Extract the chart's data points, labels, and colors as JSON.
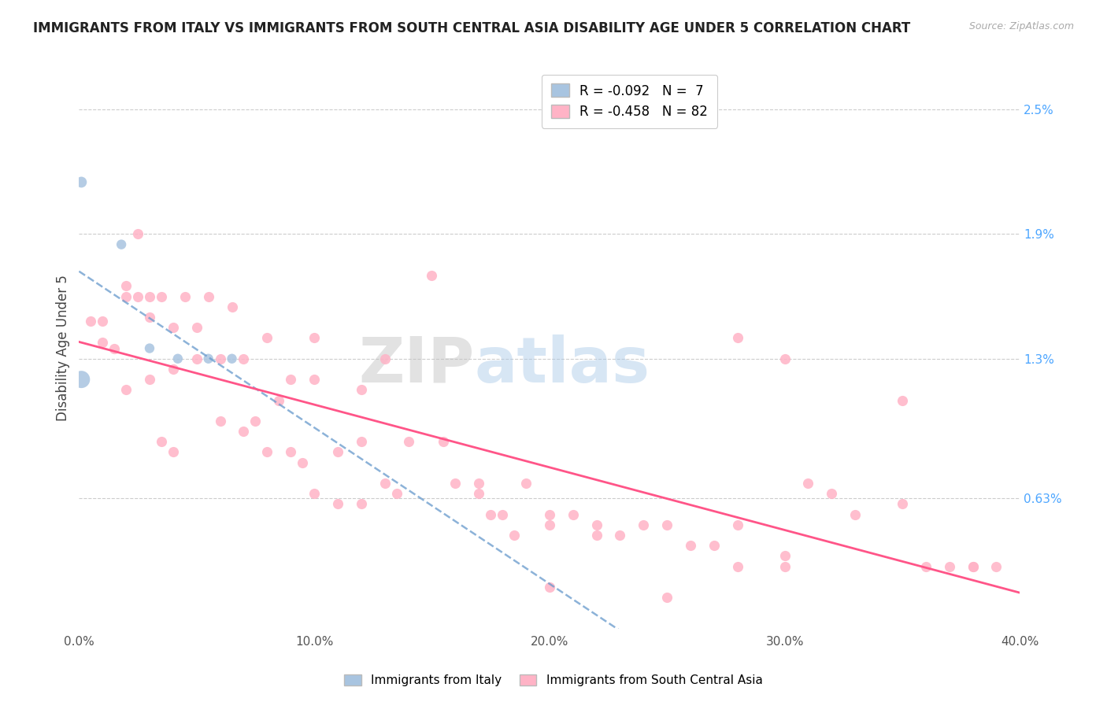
{
  "title": "IMMIGRANTS FROM ITALY VS IMMIGRANTS FROM SOUTH CENTRAL ASIA DISABILITY AGE UNDER 5 CORRELATION CHART",
  "source": "Source: ZipAtlas.com",
  "ylabel": "Disability Age Under 5",
  "ytick_labels": [
    "0.63%",
    "1.3%",
    "1.9%",
    "2.5%"
  ],
  "ytick_values": [
    0.0063,
    0.013,
    0.019,
    0.025
  ],
  "xlim": [
    0.0,
    0.4
  ],
  "ylim": [
    0.0,
    0.027
  ],
  "legend_italy_R": "-0.092",
  "legend_italy_N": "7",
  "legend_asia_R": "-0.458",
  "legend_asia_N": "82",
  "color_italy": "#a8c4e0",
  "color_italy_line": "#6699cc",
  "color_asia": "#ffb3c6",
  "color_asia_line": "#ff5588",
  "watermark_zip": "ZIP",
  "watermark_atlas": "atlas",
  "italy_x": [
    0.001,
    0.018,
    0.03,
    0.042,
    0.055,
    0.001,
    0.065
  ],
  "italy_y": [
    0.0215,
    0.0185,
    0.0135,
    0.013,
    0.013,
    0.012,
    0.013
  ],
  "asia_scatter_x": [
    0.005,
    0.01,
    0.01,
    0.015,
    0.02,
    0.02,
    0.02,
    0.025,
    0.025,
    0.03,
    0.03,
    0.03,
    0.035,
    0.035,
    0.04,
    0.04,
    0.04,
    0.045,
    0.05,
    0.05,
    0.055,
    0.06,
    0.06,
    0.065,
    0.07,
    0.07,
    0.075,
    0.08,
    0.08,
    0.085,
    0.09,
    0.09,
    0.095,
    0.1,
    0.1,
    0.1,
    0.11,
    0.11,
    0.12,
    0.12,
    0.12,
    0.13,
    0.13,
    0.135,
    0.14,
    0.15,
    0.155,
    0.16,
    0.17,
    0.17,
    0.175,
    0.18,
    0.185,
    0.19,
    0.2,
    0.2,
    0.21,
    0.22,
    0.23,
    0.24,
    0.25,
    0.26,
    0.27,
    0.28,
    0.3,
    0.31,
    0.32,
    0.33,
    0.35,
    0.36,
    0.37,
    0.38,
    0.39,
    0.25,
    0.28,
    0.3,
    0.35,
    0.38,
    0.2,
    0.22,
    0.28,
    0.3
  ],
  "asia_scatter_y": [
    0.0148,
    0.0148,
    0.0138,
    0.0135,
    0.0165,
    0.016,
    0.0115,
    0.019,
    0.016,
    0.016,
    0.015,
    0.012,
    0.016,
    0.009,
    0.0145,
    0.0125,
    0.0085,
    0.016,
    0.0145,
    0.013,
    0.016,
    0.013,
    0.01,
    0.0155,
    0.013,
    0.0095,
    0.01,
    0.014,
    0.0085,
    0.011,
    0.012,
    0.0085,
    0.008,
    0.014,
    0.012,
    0.0065,
    0.0085,
    0.006,
    0.0115,
    0.009,
    0.006,
    0.013,
    0.007,
    0.0065,
    0.009,
    0.017,
    0.009,
    0.007,
    0.007,
    0.0065,
    0.0055,
    0.0055,
    0.0045,
    0.007,
    0.0055,
    0.005,
    0.0055,
    0.005,
    0.0045,
    0.005,
    0.005,
    0.004,
    0.004,
    0.003,
    0.003,
    0.007,
    0.0065,
    0.0055,
    0.006,
    0.003,
    0.003,
    0.003,
    0.003,
    0.0015,
    0.014,
    0.013,
    0.011,
    0.003,
    0.002,
    0.0045,
    0.005,
    0.0035
  ]
}
